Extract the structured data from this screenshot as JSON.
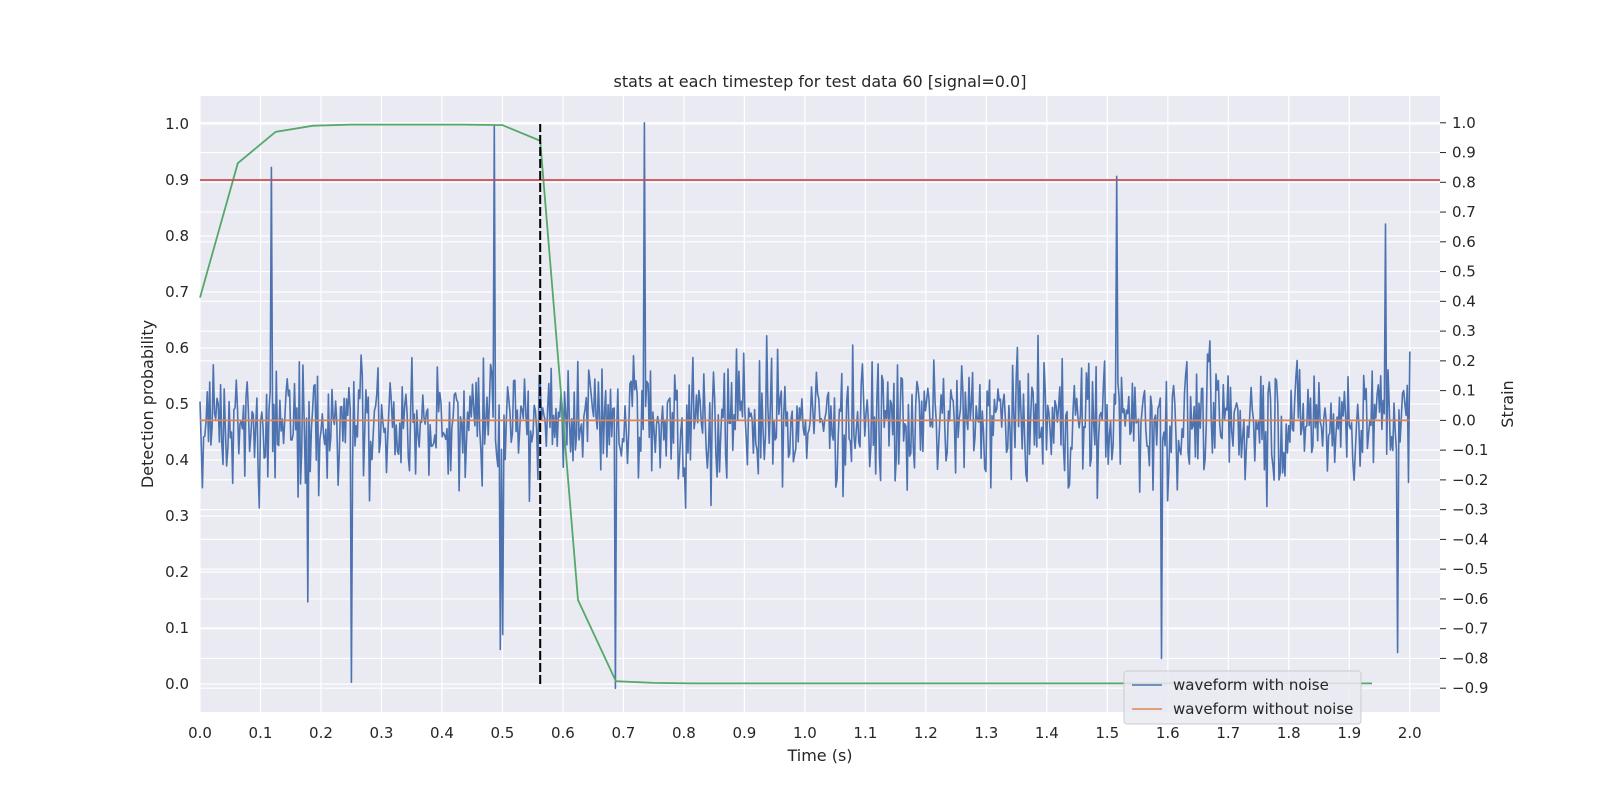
{
  "chart_data": {
    "type": "line",
    "title": "stats at each timestep for test data 60 [signal=0.0]",
    "xlabel": "Time (s)",
    "ylabel_left": "Detection probability",
    "ylabel_right": "Strain",
    "xlim": [
      0.0,
      2.05
    ],
    "ylim_left": [
      -0.05,
      1.05
    ],
    "ylim_right": [
      -0.98,
      1.09
    ],
    "x_ticks": [
      0.0,
      0.1,
      0.2,
      0.3,
      0.4,
      0.5,
      0.6,
      0.7,
      0.8,
      0.9,
      1.0,
      1.1,
      1.2,
      1.3,
      1.4,
      1.5,
      1.6,
      1.7,
      1.8,
      1.9,
      2.0
    ],
    "x_tick_labels": [
      "0.0",
      "0.1",
      "0.2",
      "0.3",
      "0.4",
      "0.5",
      "0.6",
      "0.7",
      "0.8",
      "0.9",
      "1.0",
      "1.1",
      "1.2",
      "1.3",
      "1.4",
      "1.5",
      "1.6",
      "1.7",
      "1.8",
      "1.9",
      "2.0"
    ],
    "y_left_ticks": [
      0.0,
      0.1,
      0.2,
      0.3,
      0.4,
      0.5,
      0.6,
      0.7,
      0.8,
      0.9,
      1.0
    ],
    "y_left_tick_labels": [
      "0.0",
      "0.1",
      "0.2",
      "0.3",
      "0.4",
      "0.5",
      "0.6",
      "0.7",
      "0.8",
      "0.9",
      "1.0"
    ],
    "y_right_ticks": [
      1.0,
      0.9,
      0.8,
      0.7,
      0.6,
      0.5,
      0.4,
      0.3,
      0.2,
      0.1,
      0.0,
      -0.1,
      -0.2,
      -0.3,
      -0.4,
      -0.5,
      -0.6,
      -0.7,
      -0.8,
      -0.9
    ],
    "y_right_tick_labels": [
      "1.0",
      "0.9",
      "0.8",
      "0.7",
      "0.6",
      "0.5",
      "0.4",
      "0.3",
      "0.2",
      "0.1",
      "0.0",
      "−0.1",
      "−0.2",
      "−0.3",
      "−0.4",
      "−0.5",
      "−0.6",
      "−0.7",
      "−0.8",
      "−0.9"
    ],
    "grid": true,
    "legend_position": "lower-right",
    "series": [
      {
        "name": "waveform with noise",
        "axis": "right",
        "color": "#4c72b0",
        "x_range": [
          0.0,
          2.0
        ],
        "samples": 1000,
        "baseline": 0.0,
        "noise_amplitude": 0.27,
        "peaks": [
          [
            0.118,
            0.85
          ],
          [
            0.178,
            -0.61
          ],
          [
            0.25,
            -0.88
          ],
          [
            0.487,
            0.99
          ],
          [
            0.497,
            -0.77
          ],
          [
            0.5,
            -0.72
          ],
          [
            0.735,
            1.0
          ],
          [
            0.687,
            -0.9
          ],
          [
            1.515,
            0.82
          ],
          [
            1.59,
            -0.8
          ],
          [
            1.98,
            -0.78
          ],
          [
            1.96,
            0.66
          ]
        ]
      },
      {
        "name": "waveform without noise",
        "axis": "right",
        "color": "#dd8452",
        "x": [
          0.0,
          2.0
        ],
        "y": [
          0.0,
          0.0
        ]
      },
      {
        "name": "",
        "axis": "left",
        "color": "#55a868",
        "x": [
          0.0,
          0.0625,
          0.125,
          0.1875,
          0.25,
          0.3125,
          0.375,
          0.4375,
          0.5,
          0.5625,
          0.625,
          0.6875,
          0.75,
          0.8125,
          0.875,
          0.9375,
          1.0,
          1.5,
          1.9375
        ],
        "y": [
          0.69,
          0.93,
          0.986,
          0.997,
          0.999,
          0.999,
          0.999,
          0.999,
          0.998,
          0.97,
          0.15,
          0.005,
          0.002,
          0.001,
          0.001,
          0.001,
          0.001,
          0.001,
          0.001
        ]
      },
      {
        "name": "",
        "axis": "left",
        "color": "#c44e52",
        "x": [
          0.0,
          2.05
        ],
        "y": [
          0.9,
          0.9
        ]
      },
      {
        "name": "",
        "axis": "left",
        "color": "#000000",
        "dashed": true,
        "x": [
          0.5625,
          0.5625
        ],
        "y": [
          0.0,
          1.0
        ]
      }
    ]
  }
}
